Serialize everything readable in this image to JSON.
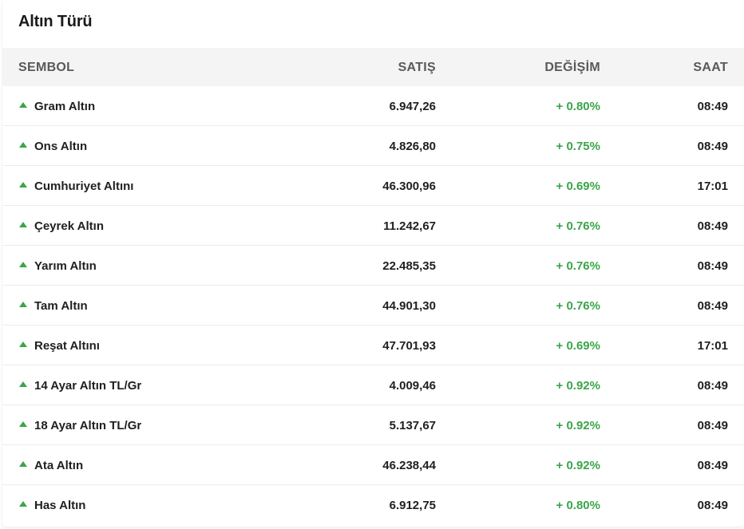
{
  "title": "Altın Türü",
  "header": {
    "symbol": "SEMBOL",
    "sale": "SATIŞ",
    "change": "DEĞİŞİM",
    "time": "SAAT"
  },
  "colors": {
    "up": "#3aa54a",
    "header_bg": "#f4f4f4"
  },
  "rows": [
    {
      "name": "Gram Altın",
      "price": "6.947,26",
      "change": "+ 0.80%",
      "time": "08:49",
      "direction": "up"
    },
    {
      "name": "Ons Altın",
      "price": "4.826,80",
      "change": "+ 0.75%",
      "time": "08:49",
      "direction": "up"
    },
    {
      "name": "Cumhuriyet Altını",
      "price": "46.300,96",
      "change": "+ 0.69%",
      "time": "17:01",
      "direction": "up"
    },
    {
      "name": "Çeyrek Altın",
      "price": "11.242,67",
      "change": "+ 0.76%",
      "time": "08:49",
      "direction": "up"
    },
    {
      "name": "Yarım Altın",
      "price": "22.485,35",
      "change": "+ 0.76%",
      "time": "08:49",
      "direction": "up"
    },
    {
      "name": "Tam Altın",
      "price": "44.901,30",
      "change": "+ 0.76%",
      "time": "08:49",
      "direction": "up"
    },
    {
      "name": "Reşat Altını",
      "price": "47.701,93",
      "change": "+ 0.69%",
      "time": "17:01",
      "direction": "up"
    },
    {
      "name": "14 Ayar Altın TL/Gr",
      "price": "4.009,46",
      "change": "+ 0.92%",
      "time": "08:49",
      "direction": "up"
    },
    {
      "name": "18 Ayar Altın TL/Gr",
      "price": "5.137,67",
      "change": "+ 0.92%",
      "time": "08:49",
      "direction": "up"
    },
    {
      "name": "Ata Altın",
      "price": "46.238,44",
      "change": "+ 0.92%",
      "time": "08:49",
      "direction": "up"
    },
    {
      "name": "Has Altın",
      "price": "6.912,75",
      "change": "+ 0.80%",
      "time": "08:49",
      "direction": "up"
    }
  ]
}
